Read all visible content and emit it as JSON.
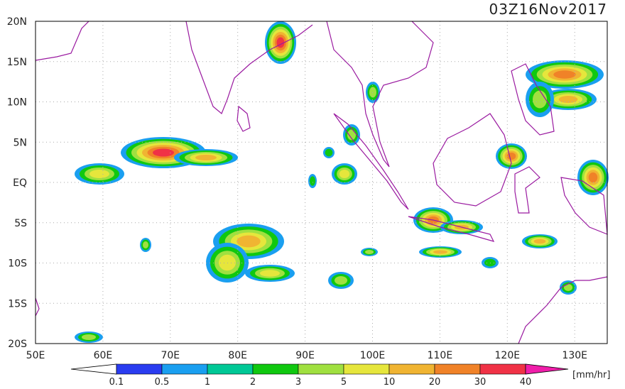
{
  "timestamp": "03Z16Nov2017",
  "lat_labels": [
    "20N",
    "15N",
    "10N",
    "5N",
    "EQ",
    "5S",
    "10S",
    "15S",
    "20S"
  ],
  "lon_labels": [
    "50E",
    "60E",
    "70E",
    "80E",
    "90E",
    "100E",
    "110E",
    "120E",
    "130E"
  ],
  "colorbar": {
    "labels": [
      "0.1",
      "0.5",
      "1",
      "2",
      "3",
      "5",
      "10",
      "20",
      "30",
      "40"
    ],
    "colors": [
      "#ffffff",
      "#2a3cf0",
      "#1a9ff0",
      "#00c896",
      "#10c810",
      "#a0e040",
      "#e6e63c",
      "#f0b432",
      "#f08228",
      "#f03246",
      "#f01eaa"
    ],
    "unit": "[mm/hr]"
  }
}
